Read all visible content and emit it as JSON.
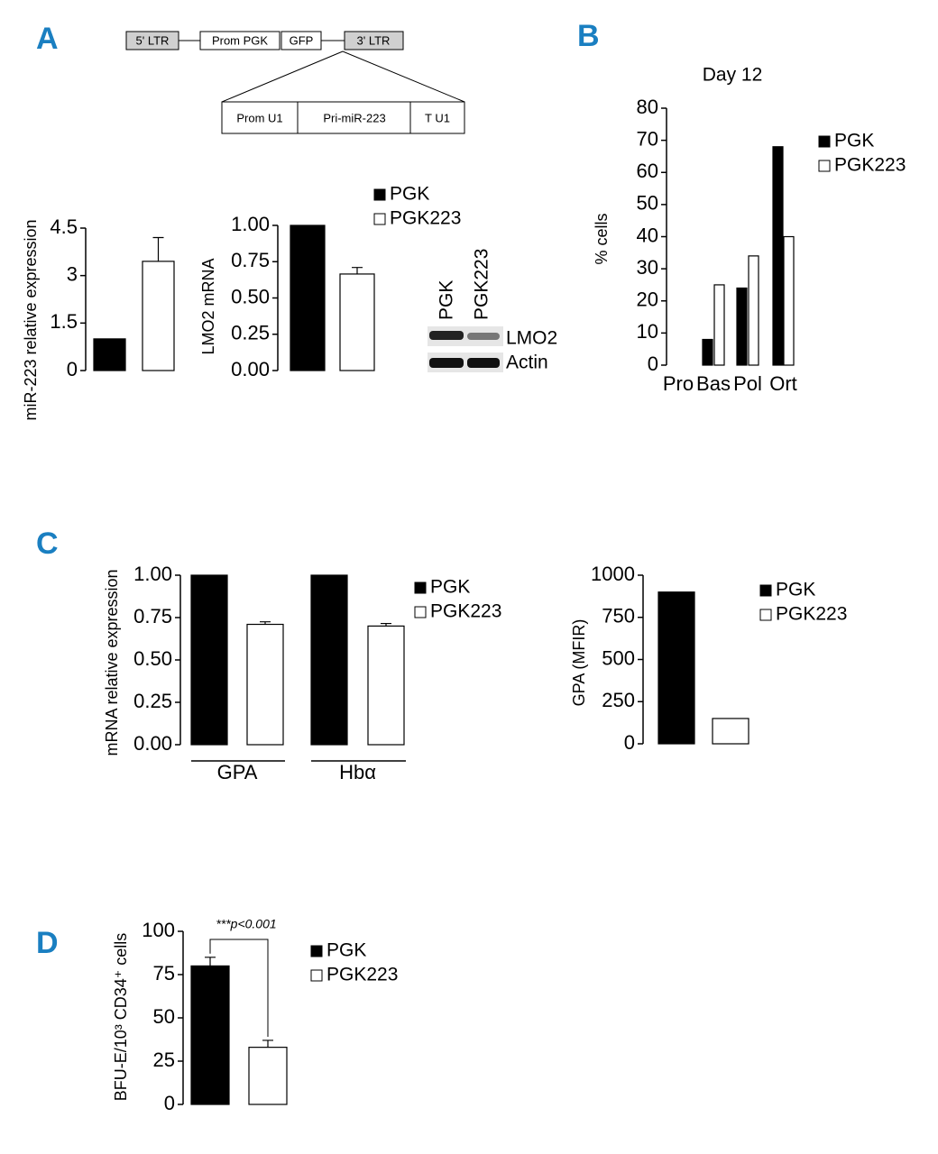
{
  "panels": [
    "A",
    "B",
    "C",
    "D"
  ],
  "construct": {
    "vector": [
      "5' LTR",
      "Prom PGK",
      "GFP",
      "3' LTR"
    ],
    "insert": [
      "Prom U1",
      "Pri-miR-223",
      "T U1"
    ]
  },
  "blot": {
    "lanes": [
      "PGK",
      "PGK223"
    ],
    "bands": [
      "LMO2",
      "Actin"
    ]
  },
  "chart_data": [
    {
      "type": "bar",
      "y_label": "miR-223 relative expression",
      "categories": [
        null
      ],
      "series": [
        {
          "color": "#000000",
          "values": [
            1
          ]
        },
        {
          "color": "#ffffff",
          "values": [
            3.45
          ],
          "errors": [
            0.75
          ]
        }
      ],
      "ylim": [
        0,
        4.5
      ],
      "yticks": [
        0,
        1.5,
        3,
        4.5
      ]
    },
    {
      "type": "bar",
      "y_label": "LMO2 mRNA",
      "categories": [
        null
      ],
      "series": [
        {
          "name": "PGK",
          "color": "#000000",
          "values": [
            1
          ]
        },
        {
          "name": "PGK223",
          "color": "#ffffff",
          "values": [
            0.665
          ],
          "errors": [
            0.045
          ]
        }
      ],
      "ylim": [
        0,
        1
      ],
      "yticks": [
        {
          "value": 0,
          "label": "0.00"
        },
        {
          "value": 0.25,
          "label": "0.25"
        },
        {
          "value": 0.5,
          "label": "0.50"
        },
        {
          "value": 0.75,
          "label": "0.75"
        },
        {
          "value": 1,
          "label": "1.00"
        }
      ]
    },
    {
      "type": "bar",
      "title": "Day 12",
      "y_label": "% cells",
      "categories": [
        "Pro",
        "Bas",
        "Pol",
        "Ort"
      ],
      "series": [
        {
          "name": "PGK",
          "color": "#000000",
          "values": [
            0,
            8,
            24,
            68
          ]
        },
        {
          "name": "PGK223",
          "color": "#ffffff",
          "values": [
            0,
            25,
            34,
            40
          ]
        }
      ],
      "ylim": [
        0,
        80
      ],
      "yticks": [
        0,
        10,
        20,
        30,
        40,
        50,
        60,
        70,
        80
      ]
    },
    {
      "type": "bar",
      "y_label": "mRNA relative expression",
      "categories": [
        "GPA",
        "Hbα"
      ],
      "series": [
        {
          "name": "PGK",
          "color": "#000000",
          "values": [
            1,
            1
          ]
        },
        {
          "name": "PGK223",
          "color": "#ffffff",
          "values": [
            0.71,
            0.7
          ],
          "errors": [
            0.015,
            0.015
          ]
        }
      ],
      "ylim": [
        0,
        1
      ],
      "yticks": [
        {
          "value": 0,
          "label": "0.00"
        },
        {
          "value": 0.25,
          "label": "0.25"
        },
        {
          "value": 0.5,
          "label": "0.50"
        },
        {
          "value": 0.75,
          "label": "0.75"
        },
        {
          "value": 1,
          "label": "1.00"
        }
      ]
    },
    {
      "type": "bar",
      "y_label": "GPA (MFIR)",
      "categories": [
        null
      ],
      "series": [
        {
          "name": "PGK",
          "color": "#000000",
          "values": [
            900
          ]
        },
        {
          "name": "PGK223",
          "color": "#ffffff",
          "values": [
            150
          ]
        }
      ],
      "ylim": [
        0,
        1000
      ],
      "yticks": [
        0,
        250,
        500,
        750,
        1000
      ]
    },
    {
      "type": "bar",
      "y_label": "BFU-E/10³ CD34⁺ cells",
      "annotation": "***p<0.001",
      "categories": [
        null
      ],
      "series": [
        {
          "name": "PGK",
          "color": "#000000",
          "values": [
            80
          ],
          "errors": [
            5
          ]
        },
        {
          "name": "PGK223",
          "color": "#ffffff",
          "values": [
            33
          ],
          "errors": [
            4
          ]
        }
      ],
      "ylim": [
        0,
        100
      ],
      "yticks": [
        0,
        25,
        50,
        75,
        100
      ]
    }
  ]
}
